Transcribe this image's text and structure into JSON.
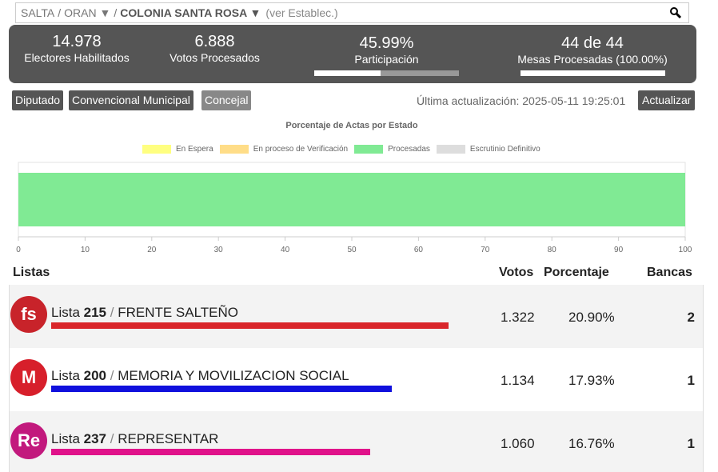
{
  "search": {
    "province": "SALTA",
    "department": "ORAN ▼",
    "locality": "COLONIA SANTA ROSA ▼",
    "hint": "(ver Establec.)",
    "separator": "/"
  },
  "stats": {
    "electores_value": "14.978",
    "electores_label": "Electores Habilitados",
    "votos_value": "6.888",
    "votos_label": "Votos Procesados",
    "participacion_value": "45.99%",
    "participacion_label": "Participación",
    "participacion_fraction": 0.4599,
    "mesas_value": "44 de 44",
    "mesas_label": "Mesas Procesadas (100.00%)",
    "mesas_fraction": 1.0
  },
  "tabs": [
    {
      "label": "Diputado"
    },
    {
      "label": "Convencional Municipal"
    },
    {
      "label": "Concejal"
    }
  ],
  "update": {
    "text": "Última actualización: 2025-05-11 19:25:01",
    "button": "Actualizar"
  },
  "chart_data": {
    "type": "bar",
    "title": "Porcentaje de Actas por Estado",
    "orientation": "horizontal-stacked",
    "series": [
      {
        "name": "En Espera",
        "value": 0,
        "color": "#ffff80"
      },
      {
        "name": "En proceso de Verificación",
        "value": 0,
        "color": "#ffdd88"
      },
      {
        "name": "Procesadas",
        "value": 100,
        "color": "#80ea94"
      },
      {
        "name": "Escrutinio Definitivo",
        "value": 0,
        "color": "#dddddd"
      }
    ],
    "xlim": [
      0,
      100
    ],
    "xticks": [
      "0",
      "10",
      "20",
      "30",
      "40",
      "50",
      "60",
      "70",
      "80",
      "90",
      "100"
    ],
    "legend": "top",
    "grid": false
  },
  "table": {
    "headers": {
      "listas": "Listas",
      "votos": "Votos",
      "porcentaje": "Porcentaje",
      "bancas": "Bancas"
    },
    "rows": [
      {
        "prefix": "Lista ",
        "number": "215",
        "sep": " / ",
        "name": "FRENTE SALTEÑO",
        "votos": "1.322",
        "porcentaje": "20.90%",
        "percent_value": 20.9,
        "bancas": "2",
        "color": "#d9262b",
        "logo_text": "fs",
        "logo_bg": "#c8232a"
      },
      {
        "prefix": "Lista ",
        "number": "200",
        "sep": " / ",
        "name": "MEMORIA Y MOVILIZACION SOCIAL",
        "votos": "1.134",
        "porcentaje": "17.93%",
        "percent_value": 17.93,
        "bancas": "1",
        "color": "#1010dd",
        "logo_text": "M",
        "logo_bg": "#d71f2b"
      },
      {
        "prefix": "Lista ",
        "number": "237",
        "sep": " / ",
        "name": "REPRESENTAR",
        "votos": "1.060",
        "porcentaje": "16.76%",
        "percent_value": 16.76,
        "bancas": "1",
        "color": "#e0128a",
        "logo_text": "Re",
        "logo_bg": "#c2197d"
      }
    ]
  }
}
